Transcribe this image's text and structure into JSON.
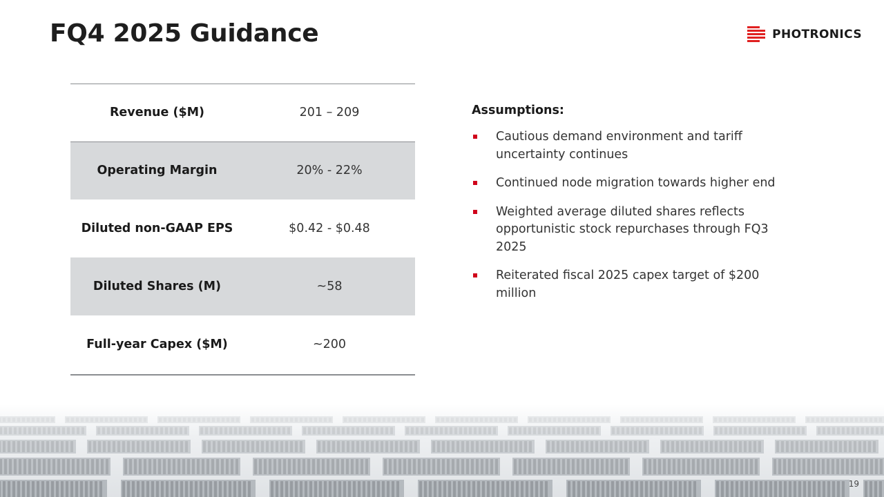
{
  "slide": {
    "title": "FQ4 2025 Guidance",
    "page_number": "19",
    "logo": {
      "text": "PHOTRONICS",
      "icon": "photronics-logo-icon",
      "accent": "#e02020"
    }
  },
  "guidance_table": {
    "rows": [
      {
        "label": "Revenue ($M)",
        "value": "201 – 209"
      },
      {
        "label": "Operating Margin",
        "value": "20% - 22%"
      },
      {
        "label": "Diluted non-GAAP EPS",
        "value": "$0.42 - $0.48"
      },
      {
        "label": "Diluted Shares (M)",
        "value": "~58"
      },
      {
        "label": "Full-year Capex ($M)",
        "value": "~200"
      }
    ],
    "shade_color": "#d7d9db"
  },
  "assumptions": {
    "heading": "Assumptions:",
    "bullet_color": "#d0021b",
    "items": [
      "Cautious demand environment and tariff uncertainty continues",
      "Continued node migration towards higher end",
      "Weighted average diluted shares reflects opportunistic stock repurchases through FQ3 2025",
      "Reiterated fiscal 2025 capex target of $200 million"
    ]
  }
}
